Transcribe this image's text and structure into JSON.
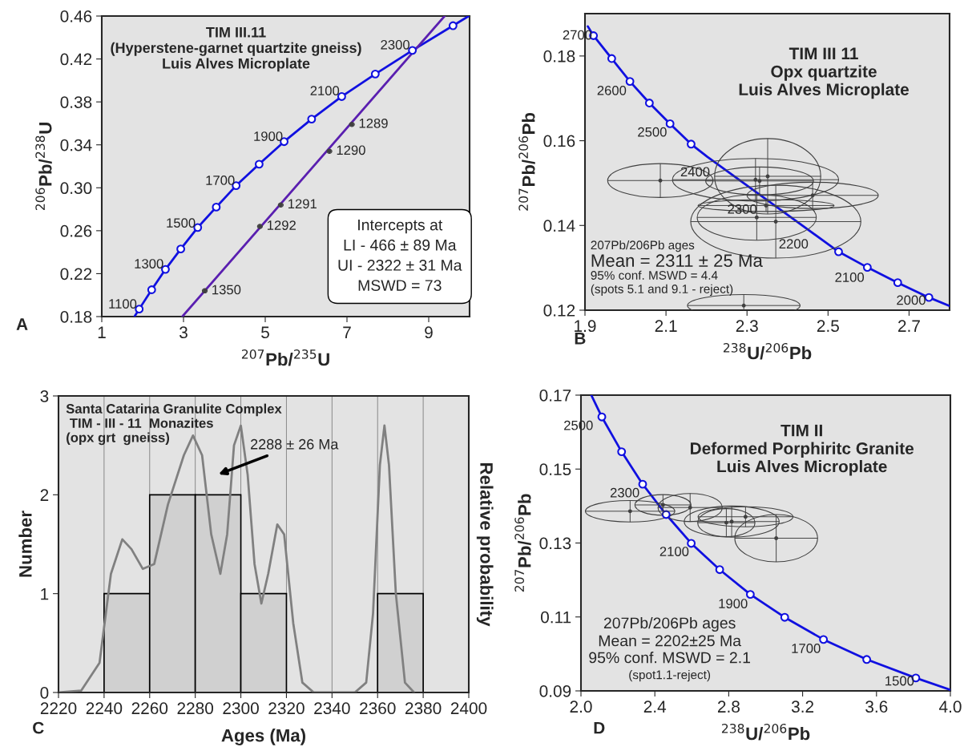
{
  "chart_data": [
    {
      "type": "line",
      "title": "TIM III.11\n(Hyperstene-garnet quartzite gneiss)\nLuis Alves Microplate",
      "xlabel": "$^{207}$Pb/$^{235}$U",
      "ylabel": "$^{206}$Pb/$^{238}$U",
      "xlim": [
        1,
        10
      ],
      "ylim": [
        0.18,
        0.46
      ],
      "xticks": [
        1,
        3,
        5,
        7,
        9
      ],
      "yticks": [
        0.18,
        0.22,
        0.26,
        {
          "value": 0.3,
          "label": "0.30"
        },
        0.34,
        0.38,
        0.42,
        0.46
      ],
      "series": [
        {
          "type": "line",
          "color": "#1010e0",
          "x": [
            1.8,
            1.916,
            2.221,
            2.558,
            2.933,
            3.348,
            3.802,
            4.288,
            4.851,
            5.462,
            6.135,
            6.871,
            7.693,
            8.601,
            9.595,
            9.98
          ],
          "values": [
            0.18,
            0.187,
            0.205,
            0.224,
            0.243,
            0.263,
            0.282,
            0.302,
            0.322,
            0.343,
            0.364,
            0.385,
            0.406,
            0.428,
            0.451,
            0.46
          ]
        },
        {
          "type": "scatter",
          "marker": "circle",
          "color": "#1010e0",
          "x": [
            1.916,
            2.221,
            2.558,
            2.933,
            3.348,
            3.802,
            4.288,
            4.851,
            5.462,
            6.135,
            6.871,
            7.693,
            8.601,
            9.595
          ],
          "values": [
            0.187,
            0.205,
            0.224,
            0.243,
            0.263,
            0.282,
            0.302,
            0.322,
            0.343,
            0.364,
            0.385,
            0.406,
            0.428,
            0.451
          ]
        },
        {
          "type": "line",
          "color": "#5a1fb0",
          "x": [
            2.97,
            9.39
          ],
          "values": [
            0.18,
            0.46
          ]
        },
        {
          "type": "scatter",
          "color": "#404040",
          "x": [
            7.12,
            6.57,
            5.38,
            4.87,
            3.52
          ],
          "values": [
            0.359,
            0.334,
            0.284,
            0.264,
            0.204
          ],
          "xerrors": [
            0.06,
            0.06,
            0.06,
            0.06,
            0.06
          ],
          "errors": [
            0.002,
            0.002,
            0.002,
            0.002,
            0.002
          ]
        }
      ],
      "annotations": [
        "A",
        "Intercepts at\nLI - 466 ± 89 Ma\nUI - 2322 ± 31 Ma\nMSWD = 73",
        "1100",
        "1300",
        "1500",
        "1700",
        "1900",
        "2100",
        "2300",
        {
          "text": "1289",
          "x": 7.12,
          "y": 0.359
        },
        {
          "text": "1290",
          "x": 6.57,
          "y": 0.334
        },
        {
          "text": "1291",
          "x": 5.38,
          "y": 0.284
        },
        {
          "text": "1292",
          "x": 4.87,
          "y": 0.264
        },
        {
          "text": "1350",
          "x": 3.52,
          "y": 0.204
        }
      ]
    },
    {
      "type": "scatter",
      "title": "TIM III 11\nOpx quartzite\nLuis Alves Microplate",
      "xlabel": "$^{238}$U/$^{206}$Pb",
      "ylabel": "$^{207}$Pb/$^{206}$Pb",
      "xlim": [
        1.9,
        2.8
      ],
      "ylim": [
        0.12,
        0.19
      ],
      "xticks": [
        1.9,
        2.1,
        2.3,
        2.5,
        2.7
      ],
      "yticks": [
        0.12,
        0.14,
        0.16,
        0.18
      ],
      "series": [
        {
          "type": "line",
          "color": "#1010e0",
          "x": [
            1.907,
            1.921,
            1.966,
            2.011,
            2.059,
            2.11,
            2.162,
            2.202,
            2.526,
            2.597,
            2.672,
            2.749,
            2.8
          ],
          "values": [
            0.187,
            0.1848,
            0.1794,
            0.174,
            0.1689,
            0.164,
            0.1592,
            0.1562,
            0.1338,
            0.1301,
            0.1265,
            0.123,
            0.121
          ]
        },
        {
          "type": "scatter",
          "marker": "circle",
          "color": "#1010e0",
          "x": [
            1.921,
            1.966,
            2.011,
            2.059,
            2.11,
            2.162,
            2.526,
            2.597,
            2.672,
            2.749
          ],
          "values": [
            0.1848,
            0.1794,
            0.174,
            0.1689,
            0.164,
            0.1592,
            0.1338,
            0.1301,
            0.1265,
            0.123
          ]
        },
        {
          "type": "scatter",
          "color": "#404040",
          "x": [
            2.371,
            2.324,
            2.347,
            2.462,
            2.351,
            2.321,
            2.331,
            2.086
          ],
          "values": [
            0.1409,
            0.1419,
            0.1447,
            0.1471,
            0.1516,
            0.1508,
            0.1505,
            0.1506
          ],
          "xerrors": [
            0.21,
            0.147,
            0.168,
            0.162,
            0.131,
            0.205,
            0.133,
            0.13
          ],
          "errors": [
            0.0086,
            0.0054,
            0.0014,
            0.0031,
            0.0089,
            0.005,
            0.0033,
            0.004
          ]
        },
        {
          "type": "scatter",
          "color": "#404040",
          "x": [
            2.292
          ],
          "values": [
            0.1211
          ],
          "xerrors": [
            0.139
          ],
          "errors": [
            0.0026
          ]
        }
      ],
      "annotations": [
        "B",
        "207Pb/206Pb ages",
        "Mean = 2311 ± 25 Ma",
        "95% conf. MSWD = 4.4",
        "(spots 5.1 and 9.1 - reject)",
        "2700",
        "2600",
        "2500",
        "2400",
        "2300",
        "2200",
        "2100",
        "2000"
      ]
    },
    {
      "type": "histogram",
      "title": "Santa Catarina Granulite Complex\n TIM - III - 11  Monazites\n(opx grt  gneiss)",
      "xlabel": "Ages (Ma)",
      "ylabel": "Number",
      "y2label": "Relative probability",
      "bins": [
        2240,
        2260,
        2280,
        2300,
        2320,
        2340,
        2360,
        2380
      ],
      "values": [
        1,
        2,
        2,
        1,
        0,
        0,
        1
      ],
      "color": "#d0d0d0",
      "xlim": [
        2220,
        2400
      ],
      "ylim": [
        0,
        3
      ],
      "xticks": [
        2220,
        2240,
        2260,
        2280,
        2300,
        2320,
        2340,
        2360,
        2380,
        2400
      ],
      "yticks": [
        0,
        1,
        2,
        3
      ],
      "grid": "x",
      "series": [
        {
          "type": "line",
          "color": "#808080",
          "x": [
            2220,
            2230,
            2238,
            2243,
            2248,
            2252,
            2257,
            2262,
            2268,
            2275,
            2279,
            2283,
            2287,
            2291,
            2294,
            2297,
            2300,
            2303,
            2306,
            2309,
            2312,
            2316,
            2319,
            2323,
            2327,
            2332,
            2350,
            2355,
            2358,
            2361,
            2363,
            2365,
            2368,
            2372,
            2376
          ],
          "values": [
            0,
            0.02,
            0.3,
            1.2,
            1.55,
            1.45,
            1.25,
            1.3,
            1.9,
            2.4,
            2.6,
            2.4,
            1.6,
            1.2,
            1.6,
            2.5,
            2.7,
            2.2,
            1.3,
            0.9,
            1.2,
            1.7,
            1.6,
            0.7,
            0.1,
            0,
            0,
            0.1,
            0.8,
            2.3,
            2.7,
            2.3,
            1.0,
            0.1,
            0
          ]
        }
      ],
      "annotations": [
        "C",
        "2288 ± 26 Ma"
      ]
    },
    {
      "type": "scatter",
      "title": "TIM II\nDeformed Porphiritc Granite\nLuis Alves Microplate",
      "xlabel": "$^{238}$U/$^{206}$Pb",
      "ylabel": "$^{207}$Pb/$^{206}$Pb",
      "xlim": [
        2.0,
        4.0
      ],
      "ylim": [
        0.09,
        0.17
      ],
      "xticks": [
        {
          "value": 2.0,
          "label": "2.0"
        },
        2.4,
        2.8,
        3.2,
        3.6,
        {
          "value": 4.0,
          "label": "4.0"
        }
      ],
      "yticks": [
        0.09,
        0.11,
        0.13,
        0.15,
        0.17
      ],
      "series": [
        {
          "type": "line",
          "color": "#1010e0",
          "x": [
            2.056,
            2.113,
            2.22,
            2.334,
            2.461,
            2.597,
            2.751,
            2.917,
            3.103,
            3.313,
            3.547,
            3.813,
            4.0
          ],
          "values": [
            0.17,
            0.1641,
            0.1547,
            0.1459,
            0.1377,
            0.1299,
            0.1228,
            0.1161,
            0.1099,
            0.1039,
            0.0985,
            0.0935,
            0.0903
          ]
        },
        {
          "type": "scatter",
          "marker": "circle",
          "color": "#1010e0",
          "x": [
            2.113,
            2.22,
            2.334,
            2.461,
            2.597,
            2.751,
            2.917,
            3.103,
            3.313,
            3.547,
            3.813
          ],
          "values": [
            0.1641,
            0.1547,
            0.1459,
            0.1377,
            0.1299,
            0.1228,
            0.1161,
            0.1099,
            0.1039,
            0.0985,
            0.0935
          ]
        },
        {
          "type": "scatter",
          "color": "#404040",
          "x": [
            2.266,
            2.444,
            2.591,
            2.816,
            2.787,
            2.891,
            3.057
          ],
          "values": [
            0.1386,
            0.1403,
            0.1396,
            0.1358,
            0.1355,
            0.1371,
            0.1313
          ],
          "xerrors": [
            0.242,
            0.152,
            0.174,
            0.257,
            0.155,
            0.257,
            0.224
          ],
          "errors": [
            0.0029,
            0.0028,
            0.0038,
            0.0042,
            0.0038,
            0.0027,
            0.0064
          ]
        }
      ],
      "annotations": [
        "D",
        "207Pb/206Pb ages",
        "Mean = 2202±25 Ma",
        "95% conf. MSWD = 2.1",
        "(spot1.1-reject)",
        "2500",
        "2300",
        "2100",
        "1900",
        "1700",
        "1500"
      ]
    }
  ]
}
